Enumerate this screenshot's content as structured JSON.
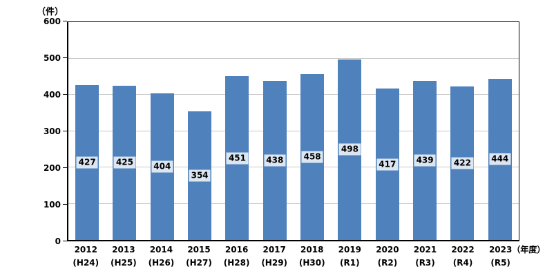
{
  "chart_data": {
    "type": "bar",
    "title": "",
    "ylabel": "（件）",
    "xlabel": "",
    "x_suffix": "（年度）",
    "categories": [
      "2012",
      "2013",
      "2014",
      "2015",
      "2016",
      "2017",
      "2018",
      "2019",
      "2020",
      "2021",
      "2022",
      "2023"
    ],
    "category_sublabels": [
      "(H24)",
      "(H25)",
      "(H26)",
      "(H27)",
      "(H28)",
      "(H29)",
      "(H30)",
      "(R1)",
      "(R2)",
      "(R3)",
      "(R4)",
      "(R5)"
    ],
    "values": [
      427,
      425,
      404,
      354,
      451,
      438,
      458,
      498,
      417,
      439,
      422,
      444
    ],
    "ylim": [
      0,
      600
    ],
    "yticks": [
      0,
      100,
      200,
      300,
      400,
      500,
      600
    ],
    "ytick_interval": 100,
    "grid": true,
    "legend": false,
    "data_labels": true,
    "colors": {
      "bar": "#4F81BD",
      "data_label_box": "#DCE6F1",
      "gridline": "#C6C6C6",
      "axis": "#000000",
      "background": "#FFFFFF"
    }
  }
}
